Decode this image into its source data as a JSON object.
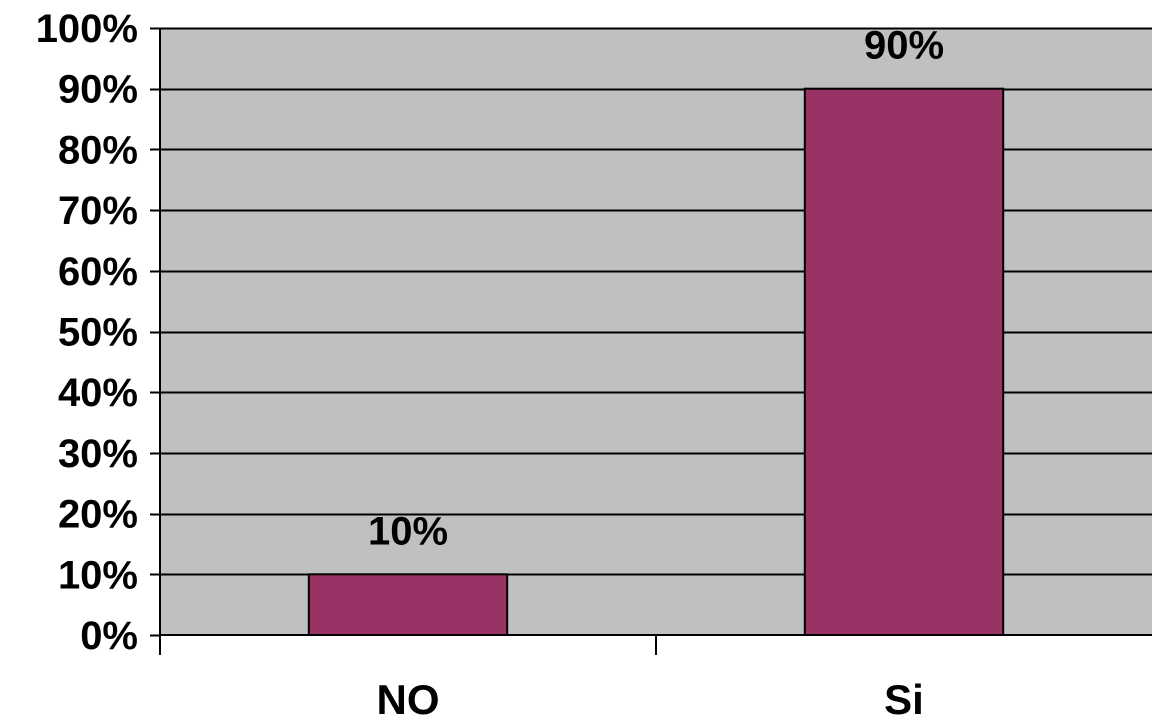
{
  "chart_data": {
    "type": "bar",
    "categories": [
      "NO",
      "Si"
    ],
    "values": [
      10,
      90
    ],
    "data_labels": [
      "10%",
      "90%"
    ],
    "ylim": [
      0,
      100
    ],
    "yticks": [
      0,
      10,
      20,
      30,
      40,
      50,
      60,
      70,
      80,
      90,
      100
    ],
    "ytick_labels": [
      "0%",
      "10%",
      "20%",
      "30%",
      "40%",
      "50%",
      "60%",
      "70%",
      "80%",
      "90%",
      "100%"
    ],
    "grid": true,
    "legend": "none",
    "colors": {
      "bar": "#993366",
      "plot_background": "#c0c0c0",
      "gridline": "#000000"
    }
  }
}
